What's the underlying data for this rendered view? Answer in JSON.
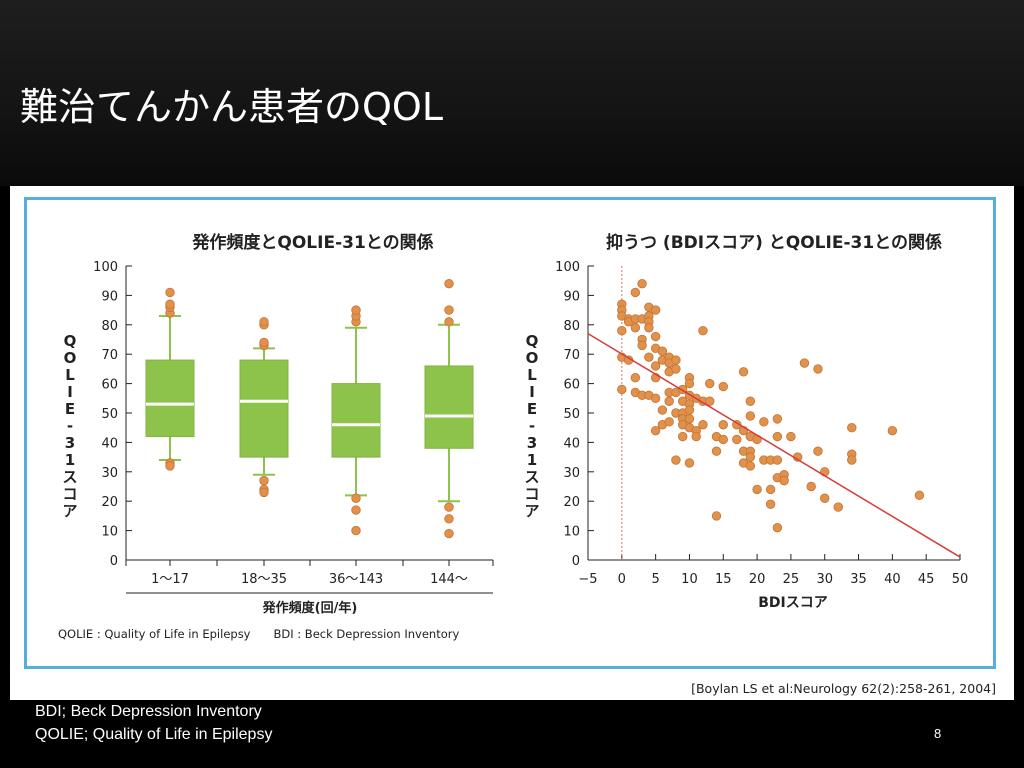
{
  "slide": {
    "title": "難治てんかん患者のQOL",
    "citation": "[Boylan LS et al:Neurology 62(2):258-261, 2004]",
    "footnotes": [
      "BDI; Beck Depression Inventory",
      "QOLIE; Quality of Life in Epilepsy"
    ],
    "page_number": "8"
  },
  "colors": {
    "frame": "#56aede",
    "box_fill": "#8dc34a",
    "box_line": "#8dc34a",
    "point": "#e0914b",
    "regression": "#d83a3a"
  },
  "chart_data": [
    {
      "type": "box",
      "title": "発作頻度とQOLIE-31との関係",
      "xlabel": "発作頻度(回/年)",
      "ylabel": "QOLIE-31スコア",
      "ylim": [
        0,
        100
      ],
      "yticks": [
        "0",
        "10",
        "20",
        "30",
        "40",
        "50",
        "60",
        "70",
        "80",
        "90",
        "100"
      ],
      "categories": [
        "1〜17",
        "18〜35",
        "36〜143",
        "144〜"
      ],
      "boxes": [
        {
          "category": "1〜17",
          "whisker_low": 34,
          "q1": 42,
          "median": 53,
          "q3": 68,
          "whisker_high": 83,
          "outliers": [
            33,
            32,
            84,
            86,
            87,
            91
          ]
        },
        {
          "category": "18〜35",
          "whisker_low": 29,
          "q1": 35,
          "median": 54,
          "q3": 68,
          "whisker_high": 72,
          "outliers": [
            27,
            24,
            23,
            73,
            74,
            80,
            81
          ]
        },
        {
          "category": "36〜143",
          "whisker_low": 22,
          "q1": 35,
          "median": 46,
          "q3": 60,
          "whisker_high": 79,
          "outliers": [
            21,
            17,
            10,
            81,
            83,
            85
          ]
        },
        {
          "category": "144〜",
          "whisker_low": 20,
          "q1": 38,
          "median": 49,
          "q3": 66,
          "whisker_high": 80,
          "outliers": [
            18,
            14,
            9,
            81,
            85,
            94
          ]
        }
      ],
      "legend_note": "QOLIE : Quality of Life in Epilepsy　　BDI : Beck Depression Inventory"
    },
    {
      "type": "scatter",
      "title": "抑うつ (BDIスコア) とQOLIE-31との関係",
      "xlabel": "BDIスコア",
      "ylabel": "QOLIE-31スコア",
      "xlim": [
        -5,
        50
      ],
      "ylim": [
        0,
        100
      ],
      "xticks": [
        "−5",
        "0",
        "5",
        "10",
        "15",
        "20",
        "25",
        "30",
        "35",
        "40",
        "45",
        "50"
      ],
      "yticks": [
        "0",
        "10",
        "20",
        "30",
        "40",
        "50",
        "60",
        "70",
        "80",
        "90",
        "100"
      ],
      "regression": {
        "x": [
          -5,
          50
        ],
        "y": [
          77,
          1
        ]
      },
      "points": [
        [
          0,
          87
        ],
        [
          0,
          85
        ],
        [
          0,
          83
        ],
        [
          0,
          78
        ],
        [
          0,
          69
        ],
        [
          0,
          58
        ],
        [
          1,
          82
        ],
        [
          1,
          81
        ],
        [
          1,
          68
        ],
        [
          2,
          91
        ],
        [
          2,
          82
        ],
        [
          2,
          79
        ],
        [
          2,
          62
        ],
        [
          2,
          57
        ],
        [
          3,
          94
        ],
        [
          3,
          82
        ],
        [
          3,
          75
        ],
        [
          3,
          73
        ],
        [
          3,
          56
        ],
        [
          4,
          86
        ],
        [
          4,
          83
        ],
        [
          4,
          81
        ],
        [
          4,
          79
        ],
        [
          4,
          69
        ],
        [
          4,
          56
        ],
        [
          5,
          85
        ],
        [
          5,
          76
        ],
        [
          5,
          72
        ],
        [
          5,
          66
        ],
        [
          5,
          62
        ],
        [
          5,
          55
        ],
        [
          5,
          44
        ],
        [
          6,
          71
        ],
        [
          6,
          68
        ],
        [
          6,
          51
        ],
        [
          6,
          46
        ],
        [
          7,
          69
        ],
        [
          7,
          67
        ],
        [
          7,
          64
        ],
        [
          7,
          57
        ],
        [
          7,
          54
        ],
        [
          7,
          47
        ],
        [
          8,
          68
        ],
        [
          8,
          65
        ],
        [
          8,
          57
        ],
        [
          8,
          50
        ],
        [
          8,
          34
        ],
        [
          9,
          58
        ],
        [
          9,
          54
        ],
        [
          9,
          50
        ],
        [
          9,
          48
        ],
        [
          9,
          46
        ],
        [
          9,
          42
        ],
        [
          10,
          62
        ],
        [
          10,
          60
        ],
        [
          10,
          56
        ],
        [
          10,
          53
        ],
        [
          10,
          51
        ],
        [
          10,
          48
        ],
        [
          10,
          45
        ],
        [
          10,
          33
        ],
        [
          11,
          55
        ],
        [
          11,
          44
        ],
        [
          11,
          42
        ],
        [
          12,
          78
        ],
        [
          12,
          54
        ],
        [
          12,
          46
        ],
        [
          13,
          60
        ],
        [
          13,
          54
        ],
        [
          14,
          42
        ],
        [
          14,
          37
        ],
        [
          14,
          15
        ],
        [
          15,
          59
        ],
        [
          15,
          46
        ],
        [
          15,
          41
        ],
        [
          17,
          46
        ],
        [
          17,
          41
        ],
        [
          18,
          64
        ],
        [
          18,
          44
        ],
        [
          18,
          37
        ],
        [
          18,
          33
        ],
        [
          19,
          54
        ],
        [
          19,
          49
        ],
        [
          19,
          42
        ],
        [
          19,
          37
        ],
        [
          19,
          35
        ],
        [
          19,
          32
        ],
        [
          20,
          41
        ],
        [
          20,
          24
        ],
        [
          21,
          47
        ],
        [
          21,
          34
        ],
        [
          22,
          34
        ],
        [
          22,
          24
        ],
        [
          22,
          19
        ],
        [
          23,
          48
        ],
        [
          23,
          42
        ],
        [
          23,
          34
        ],
        [
          23,
          28
        ],
        [
          23,
          11
        ],
        [
          24,
          29
        ],
        [
          24,
          27
        ],
        [
          25,
          42
        ],
        [
          26,
          35
        ],
        [
          27,
          67
        ],
        [
          28,
          25
        ],
        [
          29,
          65
        ],
        [
          29,
          37
        ],
        [
          30,
          30
        ],
        [
          30,
          21
        ],
        [
          32,
          18
        ],
        [
          34,
          45
        ],
        [
          34,
          36
        ],
        [
          34,
          34
        ],
        [
          40,
          44
        ],
        [
          44,
          22
        ]
      ]
    }
  ]
}
